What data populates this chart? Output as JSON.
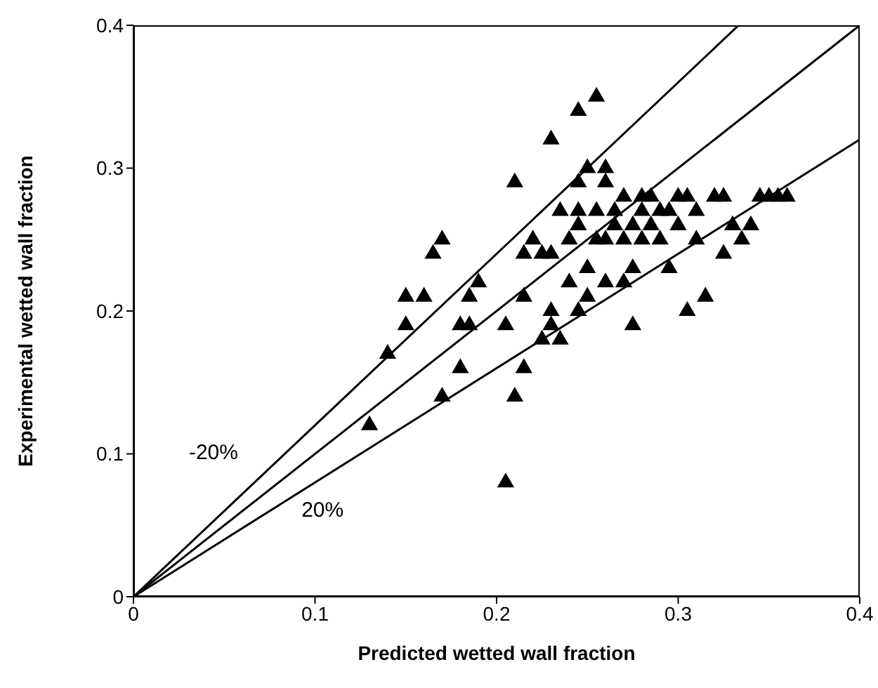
{
  "chart_data": {
    "type": "scatter",
    "xlabel": "Predicted wetted wall fraction",
    "ylabel": "Experimental wetted wall fraction",
    "xlim": [
      0,
      0.4
    ],
    "ylim": [
      0,
      0.4
    ],
    "xticks": [
      0,
      0.1,
      0.2,
      0.3,
      0.4
    ],
    "yticks": [
      0,
      0.1,
      0.2,
      0.3,
      0.4
    ],
    "grid": false,
    "series": [
      {
        "marker": "triangle",
        "color": "#000000",
        "x": [
          0.13,
          0.14,
          0.15,
          0.15,
          0.16,
          0.165,
          0.17,
          0.17,
          0.18,
          0.18,
          0.185,
          0.185,
          0.19,
          0.205,
          0.205,
          0.21,
          0.215,
          0.21,
          0.215,
          0.215,
          0.22,
          0.225,
          0.225,
          0.23,
          0.23,
          0.23,
          0.23,
          0.245,
          0.255,
          0.235,
          0.24,
          0.24,
          0.235,
          0.245,
          0.245,
          0.245,
          0.25,
          0.255,
          0.245,
          0.25,
          0.25,
          0.255,
          0.26,
          0.26,
          0.26,
          0.26,
          0.265,
          0.265,
          0.27,
          0.27,
          0.27,
          0.275,
          0.275,
          0.275,
          0.28,
          0.28,
          0.28,
          0.285,
          0.285,
          0.29,
          0.29,
          0.295,
          0.295,
          0.3,
          0.3,
          0.305,
          0.305,
          0.31,
          0.31,
          0.315,
          0.32,
          0.325,
          0.325,
          0.33,
          0.335,
          0.34,
          0.345,
          0.35,
          0.355,
          0.36
        ],
        "values": [
          0.12,
          0.17,
          0.19,
          0.21,
          0.21,
          0.24,
          0.25,
          0.14,
          0.16,
          0.19,
          0.19,
          0.21,
          0.22,
          0.08,
          0.19,
          0.14,
          0.16,
          0.29,
          0.21,
          0.24,
          0.25,
          0.24,
          0.18,
          0.19,
          0.2,
          0.24,
          0.32,
          0.34,
          0.35,
          0.27,
          0.25,
          0.22,
          0.18,
          0.26,
          0.27,
          0.29,
          0.3,
          0.27,
          0.2,
          0.23,
          0.21,
          0.25,
          0.29,
          0.3,
          0.22,
          0.25,
          0.26,
          0.27,
          0.28,
          0.25,
          0.22,
          0.23,
          0.19,
          0.26,
          0.28,
          0.27,
          0.25,
          0.26,
          0.28,
          0.27,
          0.25,
          0.23,
          0.27,
          0.28,
          0.26,
          0.28,
          0.2,
          0.25,
          0.27,
          0.21,
          0.28,
          0.24,
          0.28,
          0.26,
          0.25,
          0.26,
          0.28,
          0.28,
          0.28,
          0.28
        ]
      },
      {
        "type": "line",
        "marker": "none",
        "color": "#000000",
        "x": [
          0,
          0.3333
        ],
        "values": [
          0,
          0.4
        ]
      },
      {
        "type": "line",
        "marker": "none",
        "color": "#000000",
        "x": [
          0,
          0.4
        ],
        "values": [
          0,
          0.4
        ]
      },
      {
        "type": "line",
        "marker": "none",
        "color": "#000000",
        "x": [
          0,
          0.4
        ],
        "values": [
          0,
          0.32
        ]
      }
    ],
    "annotations": [
      "-20%",
      "20%"
    ]
  }
}
